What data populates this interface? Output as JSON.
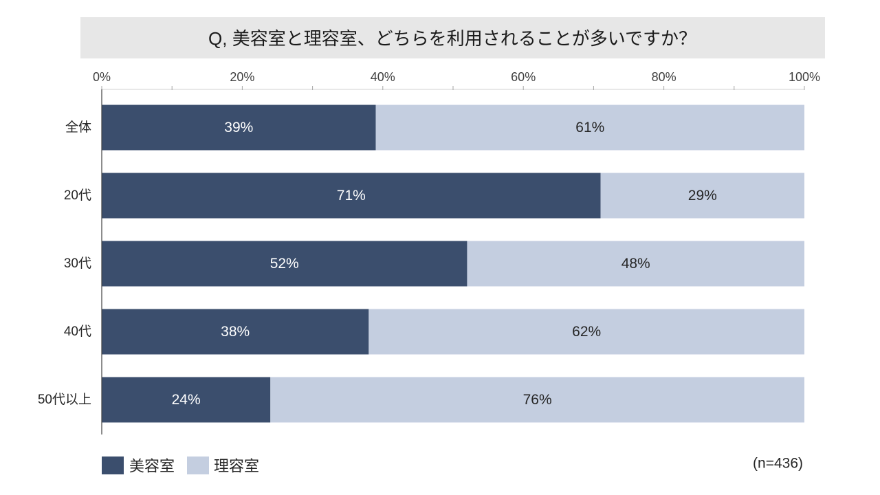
{
  "chart_data": {
    "type": "bar",
    "orientation": "horizontal",
    "stacked": true,
    "title": "Q, 美容室と理容室、どちらを利用されることが多いですか？",
    "categories": [
      "全体",
      "20代",
      "30代",
      "40代",
      "50代以上"
    ],
    "series": [
      {
        "name": "美容室",
        "color": "#3b4e6d",
        "values": [
          39,
          71,
          52,
          38,
          24
        ],
        "labels": [
          "39%",
          "71%",
          "52%",
          "38%",
          "24%"
        ]
      },
      {
        "name": "理容室",
        "color": "#c4cee0",
        "values": [
          61,
          29,
          48,
          62,
          76
        ],
        "labels": [
          "61%",
          "29%",
          "48%",
          "62%",
          "76%"
        ]
      }
    ],
    "xlim": [
      0,
      100
    ],
    "xticks": {
      "values": [
        0,
        20,
        40,
        60,
        80,
        100
      ],
      "labels": [
        "0%",
        "20%",
        "40%",
        "60%",
        "80%",
        "100%"
      ]
    },
    "x_axis_position": "top",
    "grid": false,
    "legend_position": "bottom-left",
    "note": "(n=436)"
  },
  "theme": {
    "title_background": "#e7e7e7"
  }
}
